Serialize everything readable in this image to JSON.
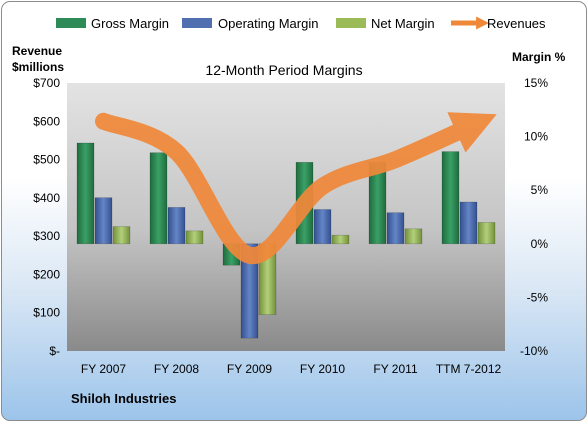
{
  "chart_data": {
    "type": "bar",
    "title": "12-Month Period Margins",
    "company": "Shiloh Industries",
    "categories": [
      "FY 2007",
      "FY 2008",
      "FY 2009",
      "FY 2010",
      "FY 2011",
      "TTM 7-2012"
    ],
    "left_axis": {
      "label_line1": "Revenue",
      "label_line2": "$millions",
      "ticks": [
        "$-",
        "$100",
        "$200",
        "$300",
        "$400",
        "$500",
        "$600",
        "$700"
      ],
      "range": [
        0,
        700
      ]
    },
    "right_axis": {
      "label": "Margin %",
      "ticks": [
        "-10%",
        "-5%",
        "0%",
        "5%",
        "10%",
        "15%"
      ],
      "range": [
        -10,
        15
      ]
    },
    "series": [
      {
        "name": "Gross Margin",
        "kind": "bar",
        "axis": "right",
        "color": "#2e8b57",
        "values": [
          9.4,
          8.5,
          -2.0,
          7.6,
          7.6,
          8.6
        ]
      },
      {
        "name": "Operating Margin",
        "kind": "bar",
        "axis": "right",
        "color": "#4f6fb0",
        "values": [
          4.3,
          3.4,
          -8.8,
          3.2,
          2.9,
          3.9
        ]
      },
      {
        "name": "Net Margin",
        "kind": "bar",
        "axis": "right",
        "color": "#9bbb59",
        "values": [
          1.6,
          1.2,
          -6.6,
          0.8,
          1.4,
          2.0
        ]
      },
      {
        "name": "Revenues",
        "kind": "line",
        "axis": "left",
        "color": "#f0883a",
        "values": [
          600,
          520,
          250,
          430,
          500,
          585
        ]
      }
    ],
    "legend_position": "top",
    "grid": false
  }
}
